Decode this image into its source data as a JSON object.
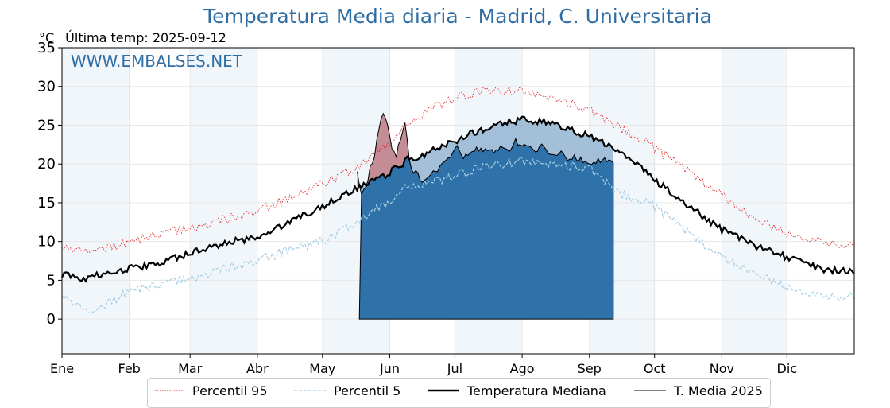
{
  "header": {
    "title": "Temperatura Media diaria - Madrid, C. Universitaria",
    "unit": "°C",
    "last_reading": "Última temp: 2025-09-12",
    "watermark": "WWW.EMBALSES.NET"
  },
  "colors": {
    "title": "#2e6da4",
    "p95": "#e31a1c",
    "p5": "#a6cee3",
    "median": "#000000",
    "current": "#000000",
    "fill_below_median": "#2f72a9",
    "fill_above_median": "#e0635f",
    "month_band": "#f1f6fb",
    "grid": "#e6e6e6"
  },
  "legend": {
    "p95": "Percentil 95",
    "p5": "Percentil 5",
    "median": "Temperatura Mediana",
    "current": "T. Media 2025"
  },
  "chart_data": {
    "type": "line",
    "title": "Temperatura Media diaria - Madrid, C. Universitaria",
    "xlabel": "",
    "ylabel": "°C",
    "x_unit": "day of year",
    "xlim": [
      1,
      366
    ],
    "ylim": [
      -4.5,
      35
    ],
    "y_ticks": [
      0,
      5,
      10,
      15,
      20,
      25,
      30,
      35
    ],
    "x_ticks": [
      {
        "day": 1,
        "label": "Ene"
      },
      {
        "day": 32,
        "label": "Feb"
      },
      {
        "day": 60,
        "label": "Mar"
      },
      {
        "day": 91,
        "label": "Abr"
      },
      {
        "day": 121,
        "label": "May"
      },
      {
        "day": 152,
        "label": "Jun"
      },
      {
        "day": 182,
        "label": "Jul"
      },
      {
        "day": 213,
        "label": "Ago"
      },
      {
        "day": 244,
        "label": "Sep"
      },
      {
        "day": 274,
        "label": "Oct"
      },
      {
        "day": 305,
        "label": "Nov"
      },
      {
        "day": 335,
        "label": "Dic"
      }
    ],
    "grid": true,
    "legend_position": "bottom",
    "series": [
      {
        "name": "Percentil 95",
        "style": "dotted",
        "points": [
          [
            1,
            9.3
          ],
          [
            15,
            9.0
          ],
          [
            32,
            9.8
          ],
          [
            46,
            11.0
          ],
          [
            60,
            11.5
          ],
          [
            75,
            12.8
          ],
          [
            91,
            14.0
          ],
          [
            106,
            15.5
          ],
          [
            121,
            17.5
          ],
          [
            136,
            19.5
          ],
          [
            150,
            22.5
          ],
          [
            160,
            25.0
          ],
          [
            170,
            27.0
          ],
          [
            182,
            28.5
          ],
          [
            195,
            29.3
          ],
          [
            213,
            29.5
          ],
          [
            228,
            28.5
          ],
          [
            244,
            27.0
          ],
          [
            255,
            25.0
          ],
          [
            266,
            23.5
          ],
          [
            274,
            22.0
          ],
          [
            290,
            19.0
          ],
          [
            305,
            16.0
          ],
          [
            320,
            13.0
          ],
          [
            335,
            11.0
          ],
          [
            350,
            10.0
          ],
          [
            366,
            9.5
          ]
        ]
      },
      {
        "name": "Percentil 5",
        "style": "dashed",
        "points": [
          [
            1,
            3.0
          ],
          [
            8,
            2.0
          ],
          [
            15,
            1.0
          ],
          [
            25,
            2.5
          ],
          [
            32,
            3.5
          ],
          [
            46,
            4.5
          ],
          [
            60,
            5.0
          ],
          [
            75,
            6.5
          ],
          [
            91,
            7.5
          ],
          [
            106,
            9.0
          ],
          [
            121,
            10.0
          ],
          [
            136,
            12.5
          ],
          [
            150,
            15.0
          ],
          [
            160,
            17.0
          ],
          [
            170,
            17.5
          ],
          [
            182,
            18.5
          ],
          [
            195,
            19.5
          ],
          [
            213,
            20.5
          ],
          [
            228,
            20.0
          ],
          [
            244,
            19.5
          ],
          [
            250,
            18.0
          ],
          [
            258,
            16.0
          ],
          [
            266,
            15.5
          ],
          [
            274,
            14.5
          ],
          [
            290,
            11.0
          ],
          [
            305,
            8.0
          ],
          [
            320,
            6.0
          ],
          [
            335,
            4.0
          ],
          [
            350,
            3.0
          ],
          [
            366,
            3.0
          ]
        ]
      },
      {
        "name": "Temperatura Mediana",
        "style": "solid",
        "points": [
          [
            1,
            5.8
          ],
          [
            10,
            5.0
          ],
          [
            20,
            5.8
          ],
          [
            32,
            6.5
          ],
          [
            46,
            7.2
          ],
          [
            60,
            8.5
          ],
          [
            75,
            9.8
          ],
          [
            91,
            10.5
          ],
          [
            106,
            12.5
          ],
          [
            121,
            14.5
          ],
          [
            136,
            16.8
          ],
          [
            150,
            18.5
          ],
          [
            160,
            20.5
          ],
          [
            170,
            21.5
          ],
          [
            182,
            23.0
          ],
          [
            195,
            24.5
          ],
          [
            213,
            25.8
          ],
          [
            228,
            25.2
          ],
          [
            244,
            23.5
          ],
          [
            255,
            22.0
          ],
          [
            266,
            20.0
          ],
          [
            274,
            18.0
          ],
          [
            290,
            14.5
          ],
          [
            305,
            11.5
          ],
          [
            320,
            9.5
          ],
          [
            335,
            8.0
          ],
          [
            350,
            6.5
          ],
          [
            366,
            6.0
          ]
        ]
      },
      {
        "name": "T. Media 2025",
        "style": "solid-thin",
        "points": [
          [
            137,
            19.0
          ],
          [
            139,
            16.0
          ],
          [
            141,
            17.0
          ],
          [
            143,
            19.5
          ],
          [
            145,
            21.0
          ],
          [
            147,
            24.5
          ],
          [
            149,
            26.8
          ],
          [
            151,
            25.0
          ],
          [
            153,
            22.0
          ],
          [
            155,
            21.0
          ],
          [
            157,
            23.5
          ],
          [
            159,
            25.5
          ],
          [
            161,
            21.0
          ],
          [
            162,
            19.5
          ],
          [
            163,
            18.5
          ],
          [
            165,
            19.0
          ],
          [
            167,
            17.5
          ],
          [
            169,
            18.0
          ],
          [
            171,
            18.5
          ],
          [
            173,
            19.0
          ],
          [
            175,
            19.5
          ],
          [
            177,
            20.5
          ],
          [
            180,
            21.0
          ],
          [
            183,
            22.0
          ],
          [
            186,
            21.0
          ],
          [
            189,
            21.5
          ],
          [
            192,
            22.0
          ],
          [
            195,
            21.5
          ],
          [
            198,
            22.0
          ],
          [
            201,
            21.5
          ],
          [
            204,
            22.5
          ],
          [
            207,
            22.0
          ],
          [
            210,
            23.0
          ],
          [
            213,
            22.5
          ],
          [
            216,
            22.0
          ],
          [
            219,
            21.5
          ],
          [
            222,
            22.5
          ],
          [
            225,
            21.5
          ],
          [
            228,
            21.0
          ],
          [
            231,
            21.5
          ],
          [
            234,
            20.5
          ],
          [
            237,
            21.0
          ],
          [
            240,
            20.5
          ],
          [
            243,
            20.5
          ],
          [
            246,
            20.0
          ],
          [
            249,
            20.5
          ],
          [
            252,
            20.5
          ],
          [
            255,
            20.0
          ]
        ]
      }
    ],
    "fills": [
      {
        "name": "below_median",
        "color": "#2f72a9",
        "description_series": "T. Media 2025 vs Temperatura Mediana"
      },
      {
        "name": "above_median",
        "color": "#e0635f",
        "description_series": "T. Media 2025 vs Temperatura Mediana"
      }
    ]
  }
}
